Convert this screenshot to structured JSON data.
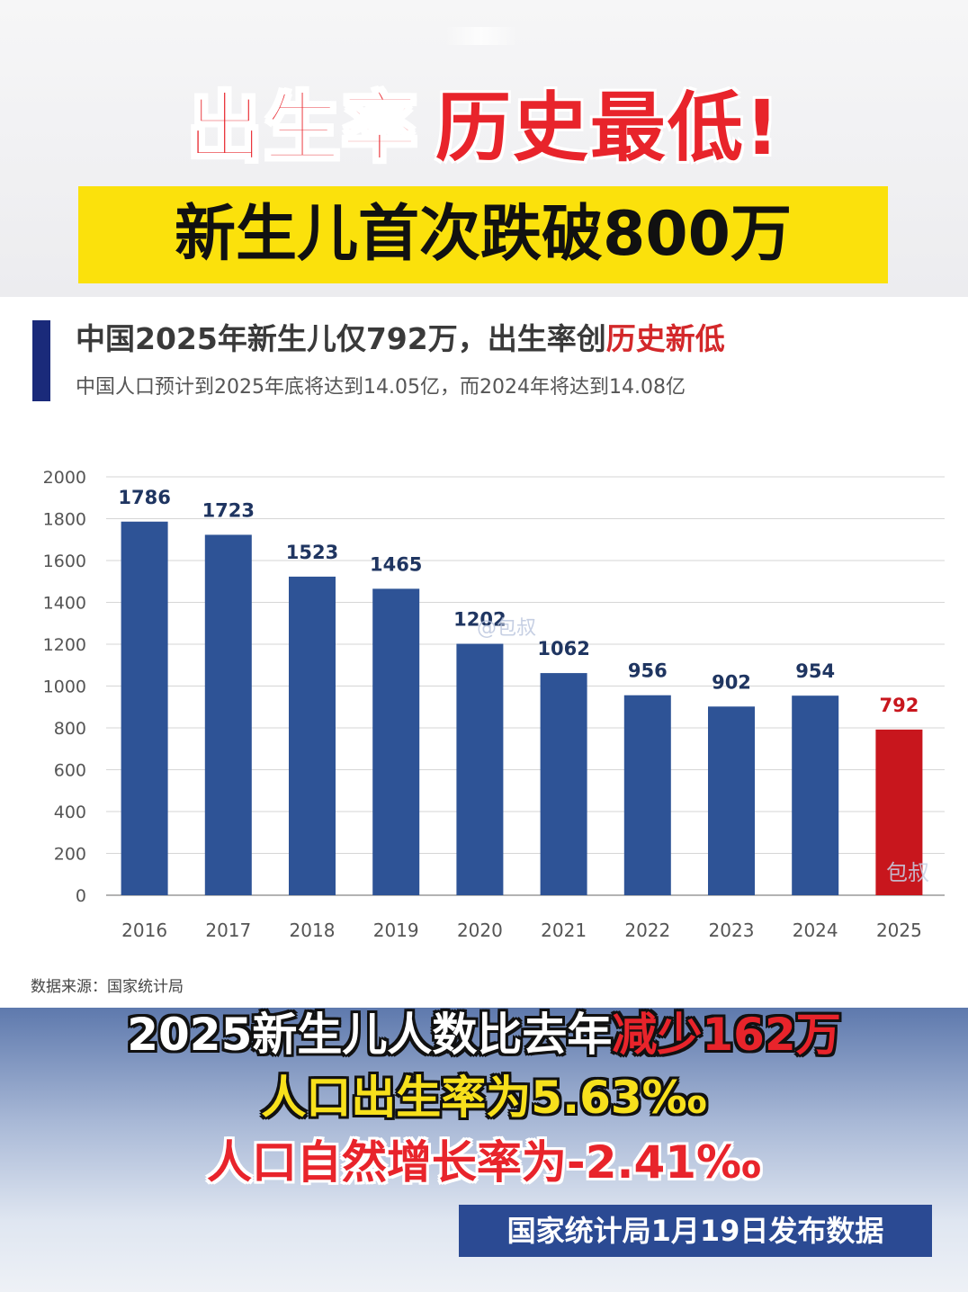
{
  "headline": {
    "part1": "出生率",
    "part2": "历史最低!"
  },
  "banner": "新生儿首次跌破800万",
  "chart_header": {
    "title_prefix": "中国2025年新生儿仅792万，出生率创",
    "title_highlight": "历史新低",
    "subtitle": "中国人口预计到2025年底将达到14.05亿，而2024年将达到14.08亿"
  },
  "watermarks": [
    "@包叔",
    "包叔"
  ],
  "source": "数据来源：国家统计局",
  "captions": {
    "line1_prefix": "2025新生儿人数比去年",
    "line1_highlight": "减少162万",
    "line2": "人口出生率为5.63‰",
    "line3": "人口自然增长率为-2.41‰"
  },
  "publish_note": "国家统计局1月19日发布数据",
  "colors": {
    "bar": "#2e5396",
    "bar_highlight": "#c8161d",
    "label": "#1f3561",
    "label_highlight": "#c8161d",
    "accent": "#1a2a7a",
    "banner_yellow": "#fbe10c"
  },
  "chart_data": {
    "type": "bar",
    "categories": [
      "2016",
      "2017",
      "2018",
      "2019",
      "2020",
      "2021",
      "2022",
      "2023",
      "2024",
      "2025"
    ],
    "values": [
      1786,
      1723,
      1523,
      1465,
      1202,
      1062,
      956,
      902,
      954,
      792
    ],
    "highlight_index": 9,
    "ylim": [
      0,
      2000
    ],
    "yticks": [
      0,
      200,
      400,
      600,
      800,
      1000,
      1200,
      1400,
      1600,
      1800,
      2000
    ],
    "grid": true,
    "xlabel": "",
    "ylabel": ""
  }
}
